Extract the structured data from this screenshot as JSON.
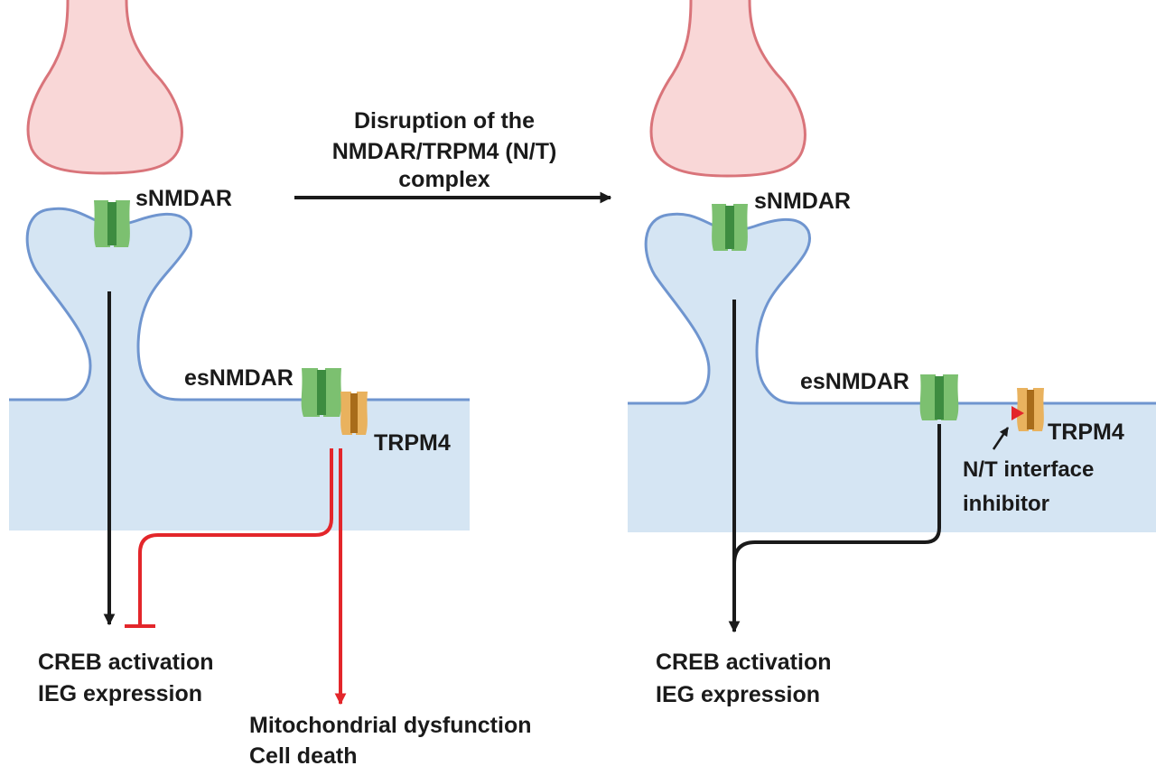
{
  "left_panel": {
    "snmdar_label": "sNMDAR",
    "esnmdar_label": "esNMDAR",
    "trpm4_label": "TRPM4",
    "outcome_good_line1": "CREB activation",
    "outcome_good_line2": "IEG expression",
    "outcome_bad_line1": "Mitochondrial dysfunction",
    "outcome_bad_line2": "Cell death"
  },
  "transition": {
    "line1": "Disruption of the",
    "line2": "NMDAR/TRPM4 (N/T)",
    "line3": "complex"
  },
  "right_panel": {
    "snmdar_label": "sNMDAR",
    "esnmdar_label": "esNMDAR",
    "trpm4_label": "TRPM4",
    "inhibitor_line1": "N/T interface",
    "inhibitor_line2": "inhibitor",
    "outcome_line1": "CREB activation",
    "outcome_line2": "IEG expression"
  },
  "colors": {
    "presynaptic_fill": "#f9d7d7",
    "presynaptic_stroke": "#d9747a",
    "postsynaptic_fill": "#d5e5f3",
    "membrane_stroke": "#6f95cf",
    "nmdar_light": "#7cc070",
    "nmdar_dark": "#3d8c40",
    "trpm4_light": "#e9b25e",
    "trpm4_dark": "#a86c1a",
    "signal_black": "#1a1a1a",
    "signal_red": "#e3262b"
  }
}
